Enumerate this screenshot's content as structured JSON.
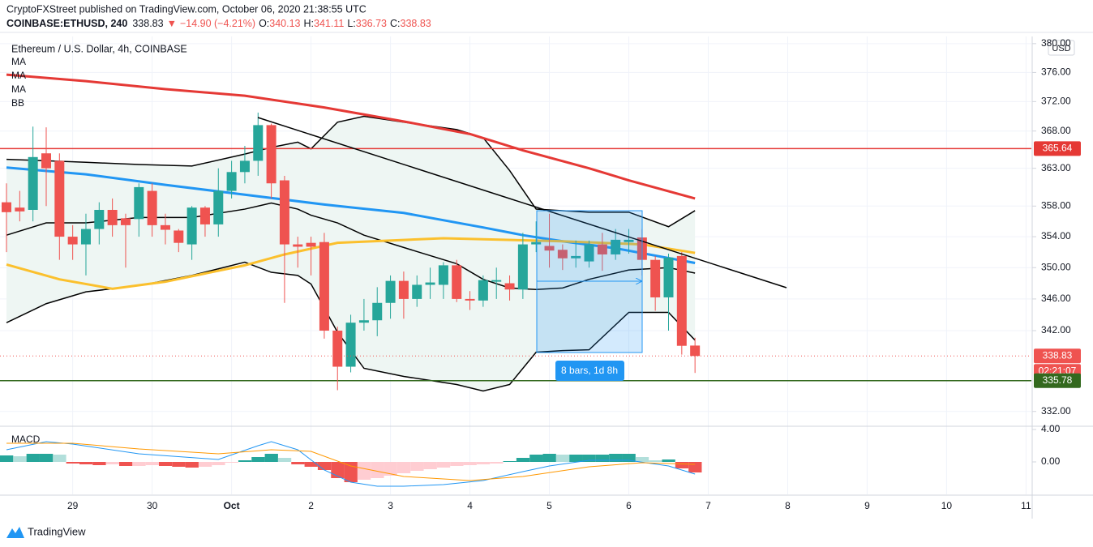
{
  "header": {
    "title": "CryptoFXStreet published on TradingView.com, October 06, 2020 21:38:55 UTC",
    "symbol": "COINBASE:ETHUSD, 240",
    "last": 338.83,
    "arrow": "▼",
    "change": "−14.90 (−4.21%)",
    "ohlc": [
      {
        "label": "O:",
        "value": 340.13
      },
      {
        "label": "H:",
        "value": 341.11
      },
      {
        "label": "L:",
        "value": 336.73
      },
      {
        "label": "C:",
        "value": 338.83
      }
    ]
  },
  "footer": {
    "brand": "TradingView"
  },
  "chart_data": {
    "type": "candlestick",
    "legend_title": "Ethereum / U.S. Dollar, 4h, COINBASE",
    "currency": "USD",
    "log_scale": true,
    "ylim": [
      330.3,
      381
    ],
    "yticks": [
      {
        "value": 332,
        "label": "332.00"
      },
      {
        "value": 342,
        "label": "342.00"
      },
      {
        "value": 346,
        "label": "346.00"
      },
      {
        "value": 350,
        "label": "350.00"
      },
      {
        "value": 354,
        "label": "354.00"
      },
      {
        "value": 358,
        "label": "358.00"
      },
      {
        "value": 363,
        "label": "363.00"
      },
      {
        "value": 368,
        "label": "368.00"
      },
      {
        "value": 372,
        "label": "372.00"
      },
      {
        "value": 376,
        "label": "376.00"
      },
      {
        "value": 380,
        "label": "380.00"
      }
    ],
    "x_labels": [
      "29",
      "30",
      "Oct",
      "2",
      "3",
      "4",
      "5",
      "6",
      "7",
      "8",
      "9",
      "10",
      "11"
    ],
    "up_color": "#26a69a",
    "down_color": "#ef5350",
    "open": [
      358.5,
      357.8,
      357.5,
      365,
      364,
      354,
      353,
      355,
      357.5,
      356.4,
      356.3,
      360,
      355.5,
      354.8,
      353,
      357.8,
      355.6,
      360,
      362.5,
      364,
      368.8,
      361.4,
      353,
      353.2,
      353.3,
      342,
      337.5,
      343,
      343.3,
      345.5,
      348.3,
      346,
      347.8,
      347.8,
      350.3,
      346,
      345.8,
      348.2,
      348,
      347.2,
      353,
      352.8,
      352.3,
      351.2,
      350.8,
      353,
      351.7,
      353.3,
      353.9,
      351,
      346.2,
      351.5,
      340.13
    ],
    "high": [
      361,
      360,
      368.6,
      368.5,
      365,
      355.5,
      357,
      358.5,
      359,
      357,
      361,
      361,
      357,
      355,
      358,
      358,
      363,
      364,
      366,
      370.5,
      369,
      362,
      354,
      354,
      354.5,
      342.5,
      344,
      346,
      347.5,
      349,
      349.5,
      349,
      350,
      350.7,
      351,
      347,
      349,
      350,
      349,
      354.5,
      356,
      357,
      353,
      353.5,
      353.5,
      354.5,
      355,
      355,
      355,
      351.5,
      351.8,
      352,
      341.11
    ],
    "low": [
      352,
      356,
      356,
      358,
      351,
      351,
      349,
      353,
      354,
      350,
      354,
      354,
      353,
      352,
      351,
      354,
      354,
      359,
      361,
      362,
      359,
      345.5,
      350,
      349,
      341,
      334.6,
      336.8,
      342,
      341.3,
      343.5,
      343.5,
      345,
      346,
      346,
      345.6,
      344.6,
      345,
      346,
      345.8,
      346,
      352,
      350,
      349.7,
      350,
      350,
      349.6,
      351,
      351.8,
      349,
      344.5,
      342,
      339,
      336.73
    ],
    "close": [
      357.2,
      357.3,
      364.5,
      363,
      354,
      353,
      355,
      357.5,
      355.5,
      355.5,
      360.5,
      355.5,
      354.9,
      353.2,
      357.8,
      355.6,
      360,
      362.5,
      364,
      368.8,
      361,
      353,
      352.7,
      352.7,
      342,
      337.5,
      343,
      343.3,
      345.5,
      348.3,
      346,
      347.8,
      348.1,
      350.3,
      346,
      345.8,
      348.4,
      348.4,
      347.2,
      353,
      353.3,
      352.2,
      351.2,
      351.5,
      353,
      351.7,
      353.6,
      353.6,
      351,
      346.2,
      351.3,
      340.1,
      338.83
    ],
    "countdown": "02:21:07",
    "price_lines": [
      {
        "value": 365.64,
        "color": "#e53935"
      },
      {
        "value": 335.78,
        "color": "#33691e"
      }
    ],
    "series": [
      {
        "name": "MA",
        "color": "#e53935",
        "x": [
          0,
          6,
          12,
          18,
          24,
          30,
          35,
          39,
          44,
          47,
          52
        ],
        "values": [
          375.7,
          374.8,
          373.7,
          372.8,
          371.2,
          369.3,
          367.6,
          365.4,
          363.0,
          361.4,
          359.0
        ]
      },
      {
        "name": "MA",
        "color": "#2196f3",
        "x": [
          0,
          6,
          12,
          18,
          24,
          30,
          36,
          39,
          42,
          46,
          52
        ],
        "values": [
          363.1,
          362.2,
          360.8,
          359.5,
          358.2,
          357.1,
          355.2,
          354.2,
          353.4,
          352.5,
          350.6
        ]
      },
      {
        "name": "MA",
        "color": "#fbc02d",
        "x": [
          0,
          4,
          8,
          12,
          18,
          21,
          25,
          33,
          42,
          48,
          52
        ],
        "values": [
          350.4,
          348.5,
          347.3,
          348.2,
          350.3,
          351.7,
          353.2,
          353.8,
          353.4,
          353.0,
          351.9
        ]
      }
    ],
    "bb": {
      "name": "BB",
      "color": "#000000",
      "fill": "#eef6f3",
      "x": [
        0,
        3,
        6,
        10,
        14,
        18,
        20,
        22,
        23,
        25,
        27,
        30,
        34,
        36,
        38,
        40,
        42,
        44,
        47,
        50,
        52
      ],
      "upper": [
        364.2,
        364.0,
        363.8,
        363.5,
        363.3,
        364.9,
        365.8,
        366.5,
        365.6,
        369.2,
        370.0,
        369.2,
        368.2,
        367.1,
        362.7,
        357.6,
        357.4,
        357.2,
        357.2,
        355.3,
        357.4
      ],
      "basis": [
        354.2,
        355.8,
        355.8,
        356.5,
        356.5,
        357.6,
        358.4,
        357.6,
        356.8,
        355.8,
        354.2,
        352.6,
        350.5,
        348.5,
        347.4,
        347.2,
        347.4,
        348.5,
        349.7,
        350.0,
        349.3
      ],
      "lower": [
        343.0,
        345.4,
        346.9,
        347.7,
        349.0,
        350.7,
        349.4,
        349.0,
        347.9,
        341.8,
        337.3,
        336.3,
        335.3,
        334.5,
        335.3,
        339.3,
        339.5,
        339.6,
        344.3,
        344.3,
        340.8
      ]
    },
    "range_label": "8 bars, 1d 8h",
    "macd": {
      "name": "MACD",
      "ylim": [
        -4.0,
        4.3
      ],
      "yticks": [
        {
          "value": 4,
          "label": "4.00"
        },
        {
          "value": 0,
          "label": "0.00"
        }
      ],
      "hist_colors": [
        "#26a69a",
        "#b2dfdb",
        "#ffcdd2",
        "#ef5350"
      ],
      "histogram": [
        0.8,
        0.7,
        1.0,
        1.0,
        0.9,
        -0.2,
        -0.3,
        -0.4,
        -0.3,
        -0.5,
        -0.5,
        -0.4,
        -0.5,
        -0.6,
        -0.7,
        -0.6,
        -0.4,
        -0.1,
        0.2,
        0.6,
        1.0,
        0.5,
        -0.3,
        -0.6,
        -1.0,
        -2.0,
        -2.5,
        -2.2,
        -2.0,
        -1.7,
        -1.4,
        -1.1,
        -0.9,
        -0.7,
        -0.5,
        -0.4,
        -0.3,
        -0.2,
        0.1,
        0.5,
        0.9,
        1.0,
        0.9,
        0.9,
        0.9,
        0.9,
        1.0,
        1.0,
        0.6,
        0.2,
        0.3,
        -0.8,
        -1.3
      ],
      "lines": [
        {
          "color": "#2196f3",
          "x": [
            0,
            3,
            5,
            10,
            16,
            19,
            20,
            22,
            24,
            26,
            28,
            30,
            33,
            36,
            39,
            41,
            44,
            47,
            50,
            52
          ],
          "values": [
            1.5,
            2.5,
            2.2,
            1.0,
            0.3,
            2.0,
            2.5,
            1.5,
            -1.0,
            -2.5,
            -3.0,
            -3.0,
            -2.8,
            -2.3,
            -1.2,
            -0.5,
            0.2,
            0.2,
            -0.5,
            -1.5
          ]
        },
        {
          "color": "#ff9800",
          "x": [
            0,
            5,
            10,
            16,
            20,
            23,
            26,
            30,
            35,
            39,
            44,
            48,
            52
          ],
          "values": [
            2.3,
            2.3,
            1.6,
            1.0,
            1.5,
            1.3,
            -0.5,
            -1.8,
            -2.3,
            -1.8,
            -0.6,
            -0.1,
            -0.3
          ]
        }
      ]
    }
  }
}
